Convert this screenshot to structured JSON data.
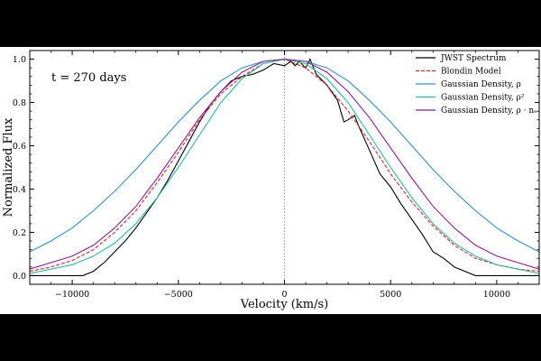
{
  "chart_data": {
    "type": "line",
    "annotation": "t = 270 days",
    "xlabel": "Velocity (km/s)",
    "ylabel": "Normalized Flux",
    "xlim": [
      -12000,
      12000
    ],
    "ylim": [
      -0.04,
      1.04
    ],
    "xticks": [
      -10000,
      -5000,
      0,
      5000,
      10000
    ],
    "xtick_labels": [
      "−10000",
      "−5000",
      "0",
      "5000",
      "10000"
    ],
    "yticks": [
      0.0,
      0.2,
      0.4,
      0.6,
      0.8,
      1.0
    ],
    "ytick_labels": [
      "0.0",
      "0.2",
      "0.4",
      "0.6",
      "0.8",
      "1.0"
    ],
    "vline_x": 0,
    "legend_position": "upper-right",
    "legend": [
      "JWST Spectrum",
      "Blondin Model",
      "Gaussian Density, ρ",
      "Gaussian Density, ρ²",
      "Gaussian Density, ρ · nₑ"
    ],
    "series": [
      {
        "name": "JWST Spectrum",
        "color": "#000000",
        "dash": "solid",
        "x": [
          -12000,
          -9500,
          -9000,
          -8500,
          -8000,
          -7500,
          -7000,
          -6500,
          -6000,
          -5500,
          -5000,
          -4500,
          -4000,
          -3500,
          -3000,
          -2500,
          -2000,
          -1500,
          -1000,
          -500,
          0,
          300,
          500,
          700,
          1000,
          1200,
          1500,
          2000,
          2500,
          2800,
          3000,
          3300,
          3500,
          4000,
          4500,
          5000,
          5500,
          6000,
          6500,
          7000,
          7500,
          8000,
          8500,
          9000,
          10000,
          12000
        ],
        "y": [
          0.0,
          0.0,
          0.02,
          0.06,
          0.11,
          0.16,
          0.22,
          0.29,
          0.36,
          0.44,
          0.53,
          0.62,
          0.71,
          0.79,
          0.85,
          0.9,
          0.92,
          0.93,
          0.95,
          0.98,
          0.97,
          0.99,
          0.97,
          0.99,
          0.96,
          1.0,
          0.93,
          0.88,
          0.81,
          0.71,
          0.72,
          0.74,
          0.69,
          0.58,
          0.47,
          0.41,
          0.33,
          0.26,
          0.19,
          0.11,
          0.08,
          0.04,
          0.02,
          0.0,
          0.0,
          0.0
        ]
      },
      {
        "name": "Blondin Model",
        "color": "#e8241c",
        "dash": "dashed",
        "x": [
          -12000,
          -11000,
          -10000,
          -9000,
          -8000,
          -7000,
          -6000,
          -5000,
          -4000,
          -3000,
          -2000,
          -1000,
          0,
          1000,
          2000,
          3000,
          4000,
          5000,
          6000,
          7000,
          8000,
          9000,
          10000,
          11000,
          12000
        ],
        "y": [
          0.02,
          0.04,
          0.07,
          0.12,
          0.2,
          0.3,
          0.43,
          0.57,
          0.72,
          0.84,
          0.92,
          0.98,
          1.0,
          0.96,
          0.88,
          0.76,
          0.62,
          0.47,
          0.34,
          0.23,
          0.14,
          0.08,
          0.05,
          0.03,
          0.02
        ]
      },
      {
        "name": "Gaussian Density, ρ",
        "color": "#2b8fd8",
        "dash": "solid",
        "x": [
          -12000,
          -11000,
          -10000,
          -9000,
          -8000,
          -7000,
          -6000,
          -5000,
          -4000,
          -3000,
          -2000,
          -1000,
          0,
          1000,
          2000,
          3000,
          4000,
          5000,
          6000,
          7000,
          8000,
          9000,
          10000,
          11000,
          12000
        ],
        "y": [
          0.11,
          0.16,
          0.22,
          0.3,
          0.39,
          0.49,
          0.6,
          0.71,
          0.81,
          0.9,
          0.96,
          0.99,
          1.0,
          0.99,
          0.96,
          0.9,
          0.81,
          0.71,
          0.6,
          0.49,
          0.39,
          0.3,
          0.22,
          0.16,
          0.11
        ]
      },
      {
        "name": "Gaussian Density, ρ²",
        "color": "#1fbf9b",
        "dash": "solid",
        "x": [
          -12000,
          -11000,
          -10000,
          -9000,
          -8000,
          -7000,
          -6000,
          -5000,
          -4000,
          -3000,
          -2000,
          -1000,
          0,
          1000,
          2000,
          3000,
          4000,
          5000,
          6000,
          7000,
          8000,
          9000,
          10000,
          11000,
          12000
        ],
        "y": [
          0.01,
          0.03,
          0.05,
          0.09,
          0.15,
          0.24,
          0.36,
          0.5,
          0.65,
          0.8,
          0.91,
          0.98,
          1.0,
          0.98,
          0.91,
          0.8,
          0.65,
          0.5,
          0.36,
          0.24,
          0.15,
          0.09,
          0.05,
          0.03,
          0.01
        ]
      },
      {
        "name": "Gaussian Density, ρ · nₑ",
        "color": "#8b1a9e",
        "dash": "solid",
        "x": [
          -12000,
          -11000,
          -10000,
          -9000,
          -8000,
          -7000,
          -6000,
          -5000,
          -4000,
          -3000,
          -2000,
          -1000,
          0,
          1000,
          2000,
          3000,
          4000,
          5000,
          6000,
          7000,
          8000,
          9000,
          10000,
          11000,
          12000
        ],
        "y": [
          0.03,
          0.06,
          0.09,
          0.14,
          0.22,
          0.32,
          0.45,
          0.59,
          0.73,
          0.85,
          0.94,
          0.99,
          1.0,
          0.99,
          0.94,
          0.85,
          0.73,
          0.59,
          0.45,
          0.32,
          0.22,
          0.14,
          0.09,
          0.06,
          0.03
        ]
      }
    ]
  }
}
